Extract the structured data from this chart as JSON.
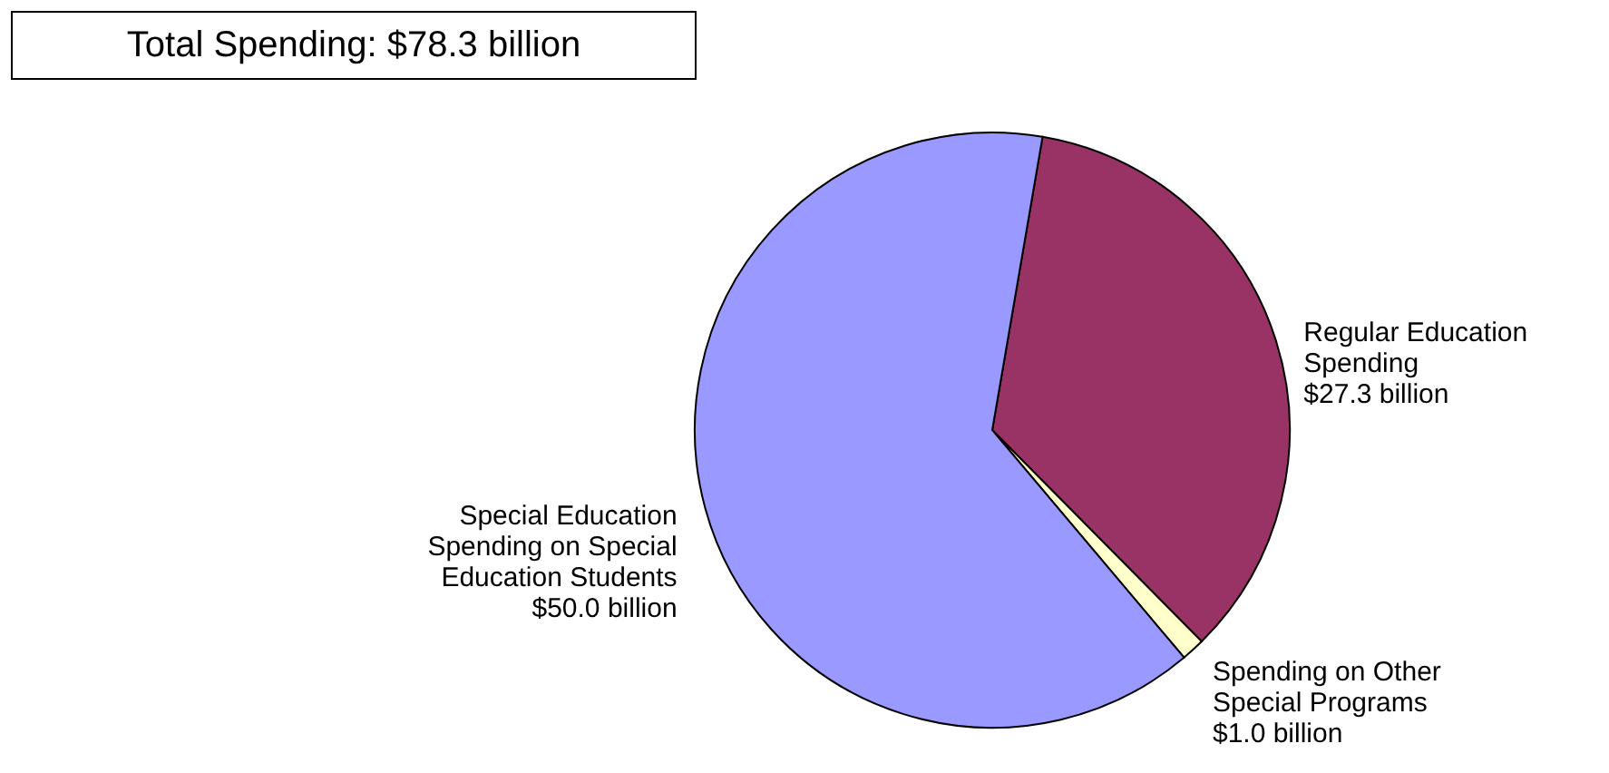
{
  "chart_data": {
    "type": "pie",
    "title": "Total Spending: $78.3 billion",
    "categories": [
      "Regular Education Spending",
      "Spending on Other Special  Programs",
      "Special Education Spending on Special Education Students"
    ],
    "values": [
      27.3,
      1.0,
      50.0
    ],
    "value_labels": [
      "$27.3 billion",
      "$1.0 billion",
      "$50.0 billion"
    ],
    "colors": [
      "#993366",
      "#ffffcc",
      "#9999ff"
    ],
    "legend": false
  }
}
